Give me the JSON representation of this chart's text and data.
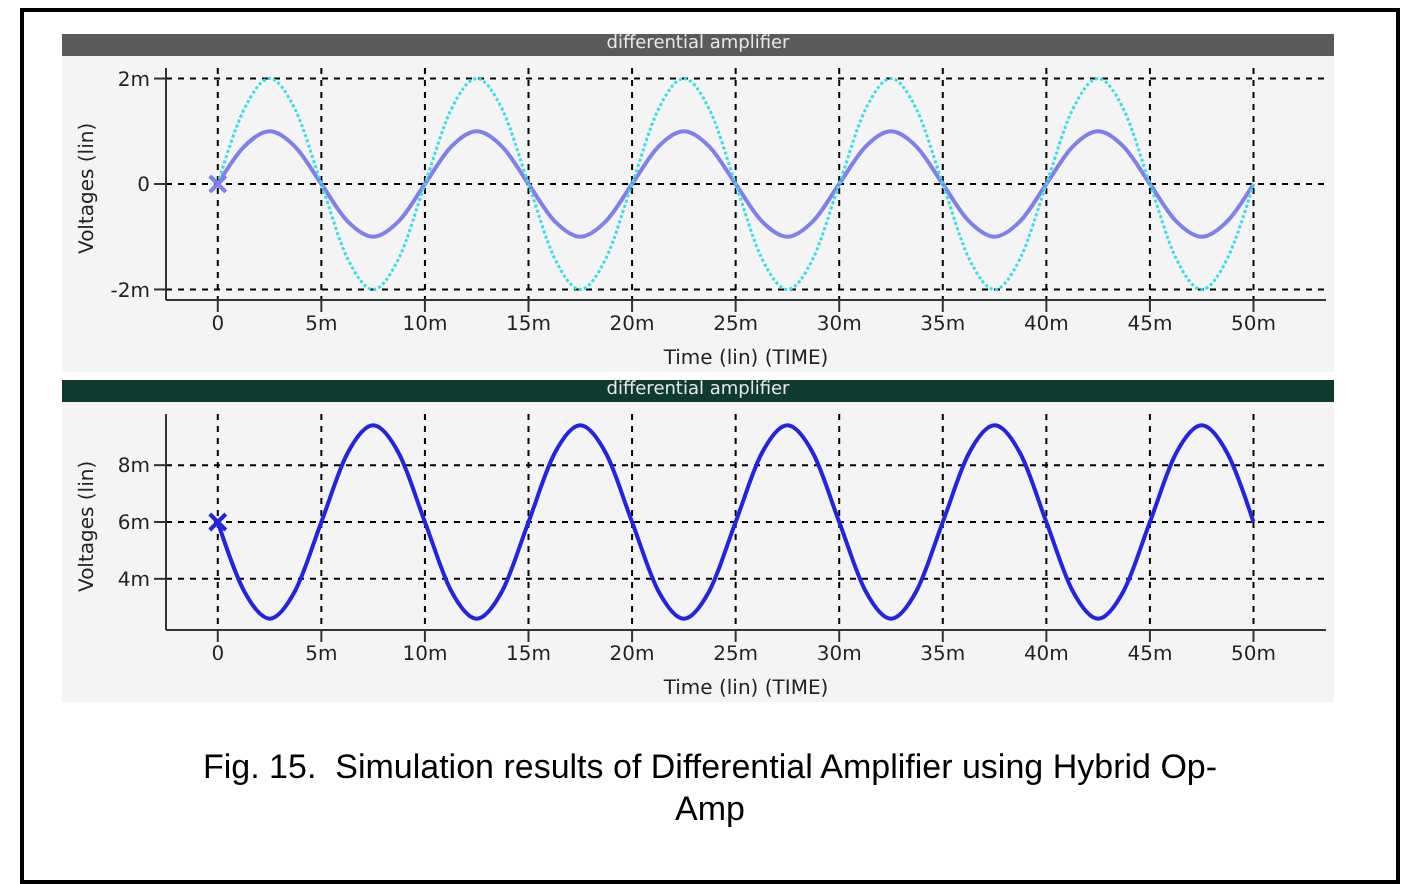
{
  "chart_data": [
    {
      "type": "line",
      "title": "differential amplifier",
      "xlabel": "Time (lin) (TIME)",
      "ylabel": "Voltages (lin)",
      "grid": true,
      "x": [
        0,
        1.25,
        2.5,
        3.75,
        5,
        6.25,
        7.5,
        8.75,
        10,
        11.25,
        12.5,
        13.75,
        15,
        16.25,
        17.5,
        18.75,
        20,
        21.25,
        22.5,
        23.75,
        25,
        26.25,
        27.5,
        28.75,
        30,
        31.25,
        32.5,
        33.75,
        35,
        36.25,
        37.5,
        38.75,
        40,
        41.25,
        42.5,
        43.75,
        45,
        46.25,
        47.5,
        48.75,
        50
      ],
      "xlim": [
        -2.5,
        53.5
      ],
      "xticks": [
        0,
        {
          "value": 5,
          "label": "5m"
        },
        {
          "value": 10,
          "label": "10m"
        },
        {
          "value": 15,
          "label": "15m"
        },
        {
          "value": 20,
          "label": "20m"
        },
        {
          "value": 25,
          "label": "25m"
        },
        {
          "value": 30,
          "label": "30m"
        },
        {
          "value": 35,
          "label": "35m"
        },
        {
          "value": 40,
          "label": "40m"
        },
        {
          "value": 45,
          "label": "45m"
        },
        {
          "value": 50,
          "label": "50m"
        }
      ],
      "ylim": [
        -2.2,
        2.2
      ],
      "yticks": [
        {
          "value": -2,
          "label": "-2m"
        },
        0,
        {
          "value": 2,
          "label": "2m"
        }
      ],
      "series": [
        {
          "color": "#33e0e8",
          "line_style": "dotted",
          "values": [
            0,
            1.4,
            2,
            1.4,
            0,
            -1.4,
            -2,
            -1.4,
            0,
            1.4,
            2,
            1.4,
            0,
            -1.4,
            -2,
            -1.4,
            0,
            1.4,
            2,
            1.4,
            0,
            -1.4,
            -2,
            -1.4,
            0,
            1.4,
            2,
            1.4,
            0,
            -1.4,
            -2,
            -1.4,
            0,
            1.4,
            2,
            1.4,
            0,
            -1.4,
            -2,
            -1.4,
            0
          ]
        },
        {
          "color": "#8080ec",
          "line_style": "solid",
          "values": [
            0,
            0.7,
            1,
            0.7,
            0,
            -0.7,
            -1,
            -0.7,
            0,
            0.7,
            1,
            0.7,
            0,
            -0.7,
            -1,
            -0.7,
            0,
            0.7,
            1,
            0.7,
            0,
            -0.7,
            -1,
            -0.7,
            0,
            0.7,
            1,
            0.7,
            0,
            -0.7,
            -1,
            -0.7,
            0,
            0.7,
            1,
            0.7,
            0,
            -0.7,
            -1,
            -0.7,
            0
          ]
        }
      ]
    },
    {
      "type": "line",
      "title": "differential amplifier",
      "xlabel": "Time (lin) (TIME)",
      "ylabel": "Voltages (lin)",
      "grid": true,
      "x": [
        0,
        1.25,
        2.5,
        3.75,
        5,
        6.25,
        7.5,
        8.75,
        10,
        11.25,
        12.5,
        13.75,
        15,
        16.25,
        17.5,
        18.75,
        20,
        21.25,
        22.5,
        23.75,
        25,
        26.25,
        27.5,
        28.75,
        30,
        31.25,
        32.5,
        33.75,
        35,
        36.25,
        37.5,
        38.75,
        40,
        41.25,
        42.5,
        43.75,
        45,
        46.25,
        47.5,
        48.75,
        50
      ],
      "xlim": [
        -2.5,
        53.5
      ],
      "xticks": [
        0,
        {
          "value": 5,
          "label": "5m"
        },
        {
          "value": 10,
          "label": "10m"
        },
        {
          "value": 15,
          "label": "15m"
        },
        {
          "value": 20,
          "label": "20m"
        },
        {
          "value": 25,
          "label": "25m"
        },
        {
          "value": 30,
          "label": "30m"
        },
        {
          "value": 35,
          "label": "35m"
        },
        {
          "value": 40,
          "label": "40m"
        },
        {
          "value": 45,
          "label": "45m"
        },
        {
          "value": 50,
          "label": "50m"
        }
      ],
      "ylim": [
        2.2,
        9.8
      ],
      "yticks": [
        {
          "value": 4,
          "label": "4m"
        },
        {
          "value": 6,
          "label": "6m"
        },
        {
          "value": 8,
          "label": "8m"
        }
      ],
      "series": [
        {
          "color": "#2323e0",
          "line_style": "solid",
          "values": [
            6,
            3.6,
            2.6,
            3.6,
            6,
            8.4,
            9.4,
            8.4,
            6,
            3.6,
            2.6,
            3.6,
            6,
            8.4,
            9.4,
            8.4,
            6,
            3.6,
            2.6,
            3.6,
            6,
            8.4,
            9.4,
            8.4,
            6,
            3.6,
            2.6,
            3.6,
            6,
            8.4,
            9.4,
            8.4,
            6,
            3.6,
            2.6,
            3.6,
            6,
            8.4,
            9.4,
            8.4,
            6
          ]
        }
      ],
      "annotations": [
        "Fig. 15.  Simulation results of Differential Amplifier using Hybrid Op-Amp"
      ]
    }
  ]
}
